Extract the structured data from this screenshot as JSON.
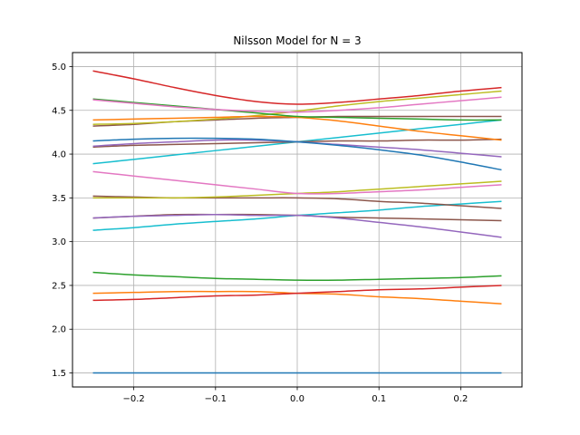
{
  "chart_data": {
    "type": "line",
    "title": "Nilsson Model for N = 3",
    "xlabel": "",
    "ylabel": "",
    "xlim": [
      -0.275,
      0.275
    ],
    "ylim": [
      1.34,
      5.16
    ],
    "grid": true,
    "legend": "none",
    "x": [
      -0.25,
      -0.2,
      -0.15,
      -0.1,
      -0.05,
      0.0,
      0.05,
      0.1,
      0.15,
      0.2,
      0.25
    ],
    "x_ticks": [
      "−0.2",
      "−0.1",
      "0.0",
      "0.1",
      "0.2"
    ],
    "x_tick_values": [
      -0.2,
      -0.1,
      0.0,
      0.1,
      0.2
    ],
    "y_ticks": [
      "1.5",
      "2.0",
      "2.5",
      "3.0",
      "3.5",
      "4.0",
      "4.5",
      "5.0"
    ],
    "y_tick_values": [
      1.5,
      2.0,
      2.5,
      3.0,
      3.5,
      4.0,
      4.5,
      5.0
    ],
    "series": [
      {
        "color": "#1f77b4",
        "values": [
          1.5,
          1.5,
          1.5,
          1.5,
          1.5,
          1.5,
          1.5,
          1.5,
          1.5,
          1.5,
          1.5
        ]
      },
      {
        "color": "#ff7f0e",
        "values": [
          2.41,
          2.42,
          2.43,
          2.43,
          2.43,
          2.41,
          2.4,
          2.37,
          2.35,
          2.32,
          2.29
        ]
      },
      {
        "color": "#d62728",
        "values": [
          2.33,
          2.34,
          2.36,
          2.38,
          2.39,
          2.41,
          2.43,
          2.45,
          2.46,
          2.48,
          2.5
        ]
      },
      {
        "color": "#2ca02c",
        "values": [
          2.65,
          2.62,
          2.6,
          2.58,
          2.57,
          2.56,
          2.56,
          2.57,
          2.58,
          2.59,
          2.61
        ]
      },
      {
        "color": "#17becf",
        "values": [
          3.13,
          3.16,
          3.2,
          3.23,
          3.26,
          3.3,
          3.33,
          3.36,
          3.4,
          3.43,
          3.46
        ]
      },
      {
        "color": "#8c564b",
        "values": [
          3.27,
          3.29,
          3.31,
          3.31,
          3.31,
          3.3,
          3.28,
          3.27,
          3.26,
          3.25,
          3.24
        ]
      },
      {
        "color": "#9467bd",
        "values": [
          3.27,
          3.29,
          3.3,
          3.31,
          3.3,
          3.3,
          3.27,
          3.22,
          3.17,
          3.11,
          3.05
        ]
      },
      {
        "color": "#8c564b",
        "values": [
          3.52,
          3.51,
          3.5,
          3.5,
          3.5,
          3.5,
          3.49,
          3.46,
          3.44,
          3.41,
          3.38
        ]
      },
      {
        "color": "#bcbd22",
        "values": [
          3.5,
          3.5,
          3.5,
          3.51,
          3.53,
          3.55,
          3.57,
          3.6,
          3.63,
          3.66,
          3.69
        ]
      },
      {
        "color": "#e377c2",
        "values": [
          3.8,
          3.75,
          3.7,
          3.65,
          3.6,
          3.55,
          3.55,
          3.57,
          3.59,
          3.62,
          3.65
        ]
      },
      {
        "color": "#17becf",
        "values": [
          3.89,
          3.94,
          3.99,
          4.04,
          4.09,
          4.14,
          4.19,
          4.24,
          4.29,
          4.34,
          4.39
        ]
      },
      {
        "color": "#8c564b",
        "values": [
          4.08,
          4.1,
          4.11,
          4.12,
          4.13,
          4.14,
          4.15,
          4.15,
          4.16,
          4.16,
          4.17
        ]
      },
      {
        "color": "#9467bd",
        "values": [
          4.09,
          4.12,
          4.14,
          4.16,
          4.16,
          4.14,
          4.11,
          4.08,
          4.05,
          4.01,
          3.97
        ]
      },
      {
        "color": "#1f77b4",
        "values": [
          4.15,
          4.17,
          4.18,
          4.18,
          4.17,
          4.14,
          4.1,
          4.05,
          3.99,
          3.91,
          3.82
        ]
      },
      {
        "color": "#8c564b",
        "values": [
          4.32,
          4.34,
          4.37,
          4.39,
          4.41,
          4.42,
          4.43,
          4.43,
          4.43,
          4.43,
          4.43
        ]
      },
      {
        "color": "#bcbd22",
        "values": [
          4.34,
          4.35,
          4.37,
          4.4,
          4.44,
          4.49,
          4.55,
          4.6,
          4.64,
          4.68,
          4.72
        ]
      },
      {
        "color": "#ff7f0e",
        "values": [
          4.39,
          4.4,
          4.41,
          4.42,
          4.43,
          4.42,
          4.38,
          4.32,
          4.26,
          4.21,
          4.16
        ]
      },
      {
        "color": "#2ca02c",
        "values": [
          4.63,
          4.59,
          4.55,
          4.51,
          4.47,
          4.43,
          4.42,
          4.41,
          4.4,
          4.39,
          4.39
        ]
      },
      {
        "color": "#e377c2",
        "values": [
          4.62,
          4.58,
          4.54,
          4.51,
          4.49,
          4.48,
          4.5,
          4.53,
          4.57,
          4.61,
          4.65
        ]
      },
      {
        "color": "#d62728",
        "values": [
          4.95,
          4.86,
          4.76,
          4.67,
          4.6,
          4.57,
          4.59,
          4.63,
          4.67,
          4.72,
          4.76
        ]
      }
    ]
  }
}
